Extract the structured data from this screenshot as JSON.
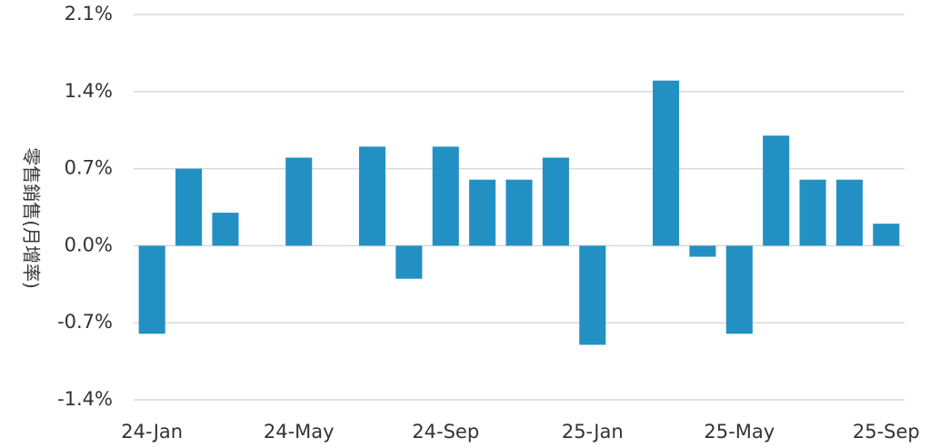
{
  "chart_data": {
    "type": "bar",
    "ylabel": "零售銷售(月增率)",
    "ylim": [
      -1.4,
      2.1
    ],
    "y_ticks": [
      "2.1%",
      "1.4%",
      "0.7%",
      "0.0%",
      "-0.7%",
      "-1.4%"
    ],
    "y_tick_values": [
      2.1,
      1.4,
      0.7,
      0.0,
      -0.7,
      -1.4
    ],
    "x_ticks": [
      "24-Jan",
      "24-May",
      "24-Sep",
      "25-Jan",
      "25-May",
      "25-Sep"
    ],
    "x_tick_indices": [
      0,
      4,
      8,
      12,
      16,
      20
    ],
    "grid": true,
    "categories": [
      "24-Jan",
      "24-Feb",
      "24-Mar",
      "24-Apr",
      "24-May",
      "24-Jun",
      "24-Jul",
      "24-Aug",
      "24-Sep",
      "24-Oct",
      "24-Nov",
      "24-Dec",
      "25-Jan",
      "25-Feb",
      "25-Mar",
      "25-Apr",
      "25-May",
      "25-Jun",
      "25-Jul",
      "25-Aug",
      "25-Sep"
    ],
    "values": [
      -0.8,
      0.7,
      0.3,
      0.0,
      0.8,
      0.0,
      0.9,
      -0.3,
      0.9,
      0.6,
      0.6,
      0.8,
      -0.9,
      0.0,
      1.5,
      -0.1,
      -0.8,
      1.0,
      0.6,
      0.6,
      0.2
    ],
    "colors": {
      "bar": "#2390c4",
      "grid": "#d9d9d9",
      "text": "#333333"
    }
  }
}
